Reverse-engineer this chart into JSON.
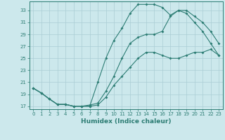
{
  "xlabel": "Humidex (Indice chaleur)",
  "ylabel": "",
  "bg_color": "#cce8ec",
  "grid_color": "#aacdd4",
  "line_color": "#2d7d74",
  "xlim": [
    -0.5,
    23.5
  ],
  "ylim": [
    16.5,
    34.5
  ],
  "yticks": [
    17,
    19,
    21,
    23,
    25,
    27,
    29,
    31,
    33
  ],
  "xticks": [
    0,
    1,
    2,
    3,
    4,
    5,
    6,
    7,
    8,
    9,
    10,
    11,
    12,
    13,
    14,
    15,
    16,
    17,
    18,
    19,
    20,
    21,
    22,
    23
  ],
  "line1_x": [
    0,
    1,
    2,
    3,
    4,
    5,
    6,
    7,
    8,
    9,
    10,
    11,
    12,
    13,
    14,
    15,
    16,
    17,
    18,
    19,
    20,
    21,
    22,
    23
  ],
  "line1_y": [
    20.0,
    19.2,
    18.2,
    17.3,
    17.3,
    17.0,
    17.0,
    17.0,
    17.2,
    18.5,
    20.5,
    22.0,
    23.5,
    25.0,
    26.0,
    26.0,
    25.5,
    25.0,
    25.0,
    25.5,
    26.0,
    26.0,
    26.5,
    25.5
  ],
  "line2_x": [
    0,
    1,
    2,
    3,
    4,
    5,
    6,
    7,
    8,
    9,
    10,
    11,
    12,
    13,
    14,
    15,
    16,
    17,
    18,
    19,
    20,
    21,
    22,
    23
  ],
  "line2_y": [
    20.0,
    19.2,
    18.2,
    17.3,
    17.3,
    17.0,
    17.0,
    17.0,
    21.0,
    25.0,
    28.0,
    30.0,
    32.5,
    34.0,
    34.0,
    34.0,
    33.5,
    32.2,
    33.0,
    32.5,
    31.0,
    29.5,
    27.5,
    25.5
  ],
  "line3_x": [
    0,
    1,
    2,
    3,
    4,
    5,
    6,
    7,
    8,
    9,
    10,
    11,
    12,
    13,
    14,
    15,
    16,
    17,
    18,
    19,
    20,
    21,
    22,
    23
  ],
  "line3_y": [
    20.0,
    19.2,
    18.2,
    17.3,
    17.3,
    17.0,
    17.0,
    17.2,
    17.5,
    19.5,
    22.0,
    25.0,
    27.5,
    28.5,
    29.0,
    29.0,
    29.5,
    32.0,
    33.0,
    33.0,
    32.0,
    31.0,
    29.5,
    27.5
  ]
}
